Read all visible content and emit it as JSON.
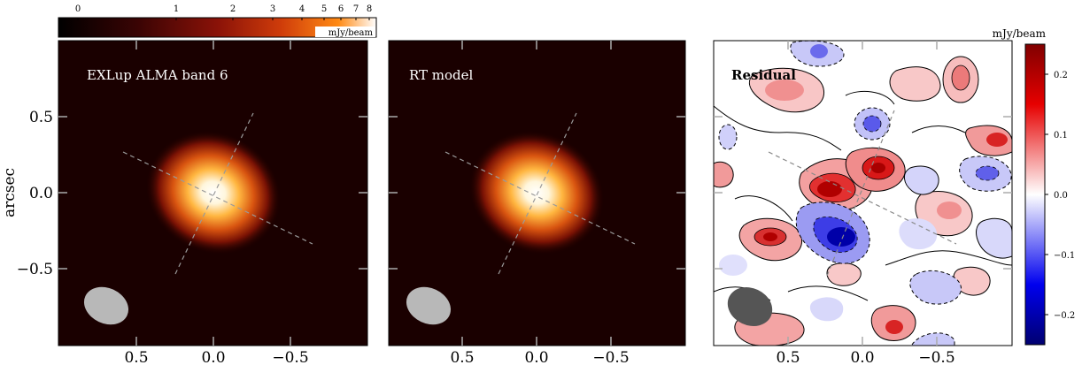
{
  "chart_data": [
    {
      "type": "heatmap",
      "title": "EXLup ALMA band 6",
      "ylabel": "arcsec",
      "xlim": [
        1.0,
        -1.0
      ],
      "ylim": [
        -1.0,
        1.0
      ],
      "xticks": [
        "0.5",
        "0.0",
        "−0.5"
      ],
      "yticks": [
        "0.5",
        "0.0",
        "−0.5"
      ],
      "colormap": "afmhot",
      "source": {
        "x": 0.0,
        "y": 0.0,
        "major_fwhm": 0.55,
        "minor_fwhm": 0.46,
        "peak": 8
      },
      "beam": {
        "x": 0.77,
        "y": -0.8,
        "major": 0.26,
        "minor": 0.2
      }
    },
    {
      "type": "heatmap",
      "title": "RT model",
      "xlim": [
        1.0,
        -1.0
      ],
      "ylim": [
        -1.0,
        1.0
      ],
      "xticks": [
        "0.5",
        "0.0",
        "−0.5"
      ],
      "colormap": "afmhot",
      "source": {
        "x": 0.0,
        "y": 0.0,
        "major_fwhm": 0.55,
        "minor_fwhm": 0.46,
        "peak": 8
      },
      "beam": {
        "x": 0.77,
        "y": -0.8,
        "major": 0.26,
        "minor": 0.2
      }
    },
    {
      "type": "heatmap",
      "title": "Residual",
      "xlim": [
        1.0,
        -1.0
      ],
      "ylim": [
        -1.0,
        1.0
      ],
      "xticks": [
        "0.5",
        "0.0",
        "−0.5"
      ],
      "colormap": "seismic",
      "beam": {
        "x": 0.77,
        "y": -0.8,
        "major": 0.26,
        "minor": 0.2
      }
    }
  ],
  "colorbar_top": {
    "label": "mJy/beam",
    "scale": "log",
    "ticks": [
      "0",
      "1",
      "2",
      "3",
      "4",
      "5",
      "6",
      "7",
      "8"
    ]
  },
  "colorbar_right": {
    "label": "mJy/beam",
    "range": [
      -0.25,
      0.25
    ],
    "ticks": [
      "0.2",
      "0.1",
      "0.0",
      "−0.1",
      "−0.2"
    ]
  },
  "colors": {
    "axis_tick": "#aaaaaa",
    "guide_line": "#9a9a9a",
    "beam_obs": "#b8b8b8",
    "beam_residual": "#555555",
    "positive": "#c00000",
    "negative": "#0000c0"
  }
}
